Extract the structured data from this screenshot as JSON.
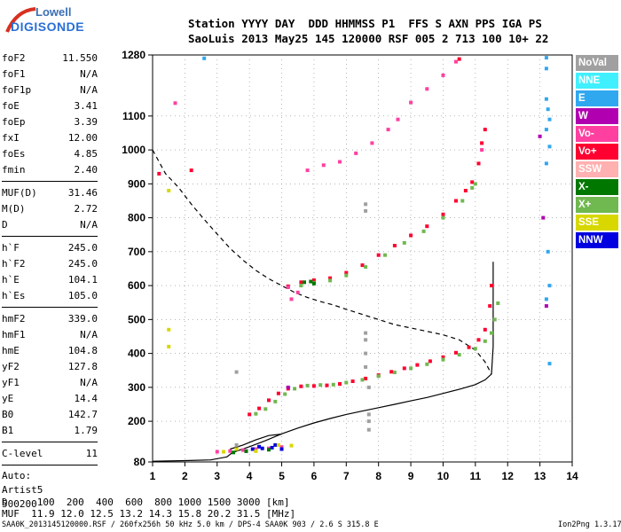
{
  "logo": {
    "line1": "Lowell",
    "line2": "DIGISONDE"
  },
  "header": {
    "row1": "Station YYYY DAY  DDD HHMMSS P1  FFS S AXN PPS IGA PS",
    "row2": "SaoLuis 2013 May25 145 120000 RSF 005 2 713 100 10+ 22"
  },
  "params": [
    [
      {
        "label": "foF2",
        "value": "11.550"
      },
      {
        "label": "foF1",
        "value": "N/A"
      },
      {
        "label": "foF1p",
        "value": "N/A"
      },
      {
        "label": "foE",
        "value": "3.41"
      },
      {
        "label": "foEp",
        "value": "3.39"
      },
      {
        "label": "fxI",
        "value": "12.00"
      },
      {
        "label": "foEs",
        "value": "4.85"
      },
      {
        "label": "fmin",
        "value": "2.40"
      }
    ],
    [
      {
        "label": "MUF(D)",
        "value": "31.46"
      },
      {
        "label": "M(D)",
        "value": "2.72"
      },
      {
        "label": "D",
        "value": "N/A"
      }
    ],
    [
      {
        "label": "h`F",
        "value": "245.0"
      },
      {
        "label": "h`F2",
        "value": "245.0"
      },
      {
        "label": "h`E",
        "value": "104.1"
      },
      {
        "label": "h`Es",
        "value": "105.0"
      }
    ],
    [
      {
        "label": "hmF2",
        "value": "339.0"
      },
      {
        "label": "hmF1",
        "value": "N/A"
      },
      {
        "label": "hmE",
        "value": "104.8"
      },
      {
        "label": "yF2",
        "value": "127.8"
      },
      {
        "label": "yF1",
        "value": "N/A"
      },
      {
        "label": "yE",
        "value": "14.4"
      },
      {
        "label": "B0",
        "value": "142.7"
      },
      {
        "label": "B1",
        "value": "1.79"
      }
    ],
    [
      {
        "label": "C-level",
        "value": "11"
      }
    ]
  ],
  "auto": [
    "Auto:",
    "Artist5",
    "500200"
  ],
  "legend": [
    {
      "label": "NoVal",
      "color": "#a0a0a0"
    },
    {
      "label": "NNE",
      "color": "#40f0ff"
    },
    {
      "label": "E",
      "color": "#30a8f0"
    },
    {
      "label": "W",
      "color": "#b000b0"
    },
    {
      "label": "Vo-",
      "color": "#ff40a0"
    },
    {
      "label": "Vo+",
      "color": "#ff0030"
    },
    {
      "label": "SSW",
      "color": "#ffb0b0"
    },
    {
      "label": "X-",
      "color": "#007800"
    },
    {
      "label": "X+",
      "color": "#70b850"
    },
    {
      "label": "SSE",
      "color": "#d8d800"
    },
    {
      "label": "NNW",
      "color": "#0000e0"
    }
  ],
  "dmuf": {
    "d_row": "D     100  200  400  600  800 1000 1500 3000 [km]",
    "muf_row": "MUF  11.9 12.0 12.5 13.2 14.3 15.8 20.2 31.5 [MHz]"
  },
  "footer": "SAA0K_2013145120000.RSF / 260fx256h 50 kHz 5.0 km / DPS-4 SAA0K 903 / 2.6 S 315.8 E",
  "version": "Ion2Png 1.3.17",
  "chart_data": {
    "type": "scatter",
    "title": "",
    "xlabel": "",
    "ylabel": "",
    "xlim": [
      1,
      14
    ],
    "ylim": [
      80,
      1280
    ],
    "x_ticks": [
      1,
      2,
      3,
      4,
      5,
      6,
      7,
      8,
      9,
      10,
      11,
      12,
      13,
      14
    ],
    "y_ticks": [
      80,
      200,
      300,
      400,
      500,
      600,
      700,
      800,
      900,
      1000,
      1100,
      1280
    ],
    "grid": "dotted",
    "series": [
      {
        "name": "Vo+",
        "color": "#ff0030",
        "points": [
          [
            4.0,
            220
          ],
          [
            4.3,
            238
          ],
          [
            4.6,
            262
          ],
          [
            4.9,
            282
          ],
          [
            5.2,
            296
          ],
          [
            5.6,
            303
          ],
          [
            6.0,
            304
          ],
          [
            6.4,
            306
          ],
          [
            6.8,
            310
          ],
          [
            7.2,
            318
          ],
          [
            7.6,
            326
          ],
          [
            8.0,
            336
          ],
          [
            8.4,
            346
          ],
          [
            8.8,
            356
          ],
          [
            9.2,
            366
          ],
          [
            9.6,
            377
          ],
          [
            10.0,
            389
          ],
          [
            10.4,
            402
          ],
          [
            10.8,
            418
          ],
          [
            11.1,
            440
          ],
          [
            11.3,
            470
          ],
          [
            11.45,
            540
          ],
          [
            11.5,
            600
          ],
          [
            5.2,
            598
          ],
          [
            5.6,
            610
          ],
          [
            6.0,
            616
          ],
          [
            6.5,
            622
          ],
          [
            7.0,
            638
          ],
          [
            7.5,
            660
          ],
          [
            8.0,
            690
          ],
          [
            8.5,
            718
          ],
          [
            9.0,
            748
          ],
          [
            9.5,
            775
          ],
          [
            10.0,
            810
          ],
          [
            10.4,
            850
          ],
          [
            10.7,
            880
          ],
          [
            10.9,
            905
          ],
          [
            11.1,
            960
          ],
          [
            11.2,
            1020
          ],
          [
            11.3,
            1060
          ],
          [
            10.5,
            1268
          ],
          [
            1.2,
            930
          ],
          [
            2.2,
            940
          ]
        ]
      },
      {
        "name": "X+",
        "color": "#70b850",
        "points": [
          [
            4.2,
            222
          ],
          [
            4.5,
            236
          ],
          [
            4.8,
            258
          ],
          [
            5.1,
            280
          ],
          [
            5.4,
            296
          ],
          [
            5.8,
            305
          ],
          [
            6.2,
            307
          ],
          [
            6.6,
            308
          ],
          [
            7.0,
            314
          ],
          [
            7.5,
            322
          ],
          [
            8.0,
            333
          ],
          [
            8.5,
            344
          ],
          [
            9.0,
            356
          ],
          [
            9.5,
            368
          ],
          [
            10.0,
            382
          ],
          [
            10.5,
            396
          ],
          [
            11.0,
            414
          ],
          [
            11.3,
            436
          ],
          [
            11.5,
            460
          ],
          [
            11.6,
            500
          ],
          [
            11.7,
            548
          ],
          [
            5.6,
            600
          ],
          [
            6.0,
            608
          ],
          [
            6.5,
            615
          ],
          [
            7.0,
            630
          ],
          [
            7.6,
            655
          ],
          [
            8.2,
            690
          ],
          [
            8.8,
            726
          ],
          [
            9.4,
            760
          ],
          [
            10.0,
            800
          ],
          [
            10.6,
            850
          ],
          [
            10.9,
            888
          ],
          [
            11.0,
            900
          ]
        ]
      },
      {
        "name": "Vo-",
        "color": "#ff40a0",
        "points": [
          [
            3.0,
            110
          ],
          [
            3.4,
            112
          ],
          [
            3.8,
            115
          ],
          [
            4.2,
            118
          ],
          [
            4.6,
            120
          ],
          [
            5.0,
            124
          ],
          [
            5.3,
            560
          ],
          [
            5.5,
            580
          ],
          [
            5.2,
            595
          ],
          [
            5.8,
            940
          ],
          [
            6.3,
            955
          ],
          [
            6.8,
            965
          ],
          [
            7.3,
            990
          ],
          [
            7.8,
            1020
          ],
          [
            8.3,
            1060
          ],
          [
            8.6,
            1090
          ],
          [
            9.0,
            1140
          ],
          [
            9.5,
            1180
          ],
          [
            10.0,
            1220
          ],
          [
            10.4,
            1260
          ],
          [
            1.7,
            1138
          ],
          [
            11.2,
            1000
          ]
        ]
      },
      {
        "name": "NNW",
        "color": "#0000e0",
        "points": [
          [
            4.1,
            118
          ],
          [
            4.4,
            120
          ],
          [
            4.7,
            122
          ],
          [
            5.0,
            118
          ],
          [
            3.9,
            112
          ],
          [
            4.3,
            125
          ],
          [
            4.8,
            130
          ]
        ]
      },
      {
        "name": "E",
        "color": "#30a8f0",
        "points": [
          [
            13.2,
            1240
          ],
          [
            13.2,
            1150
          ],
          [
            13.25,
            1120
          ],
          [
            13.3,
            1090
          ],
          [
            13.2,
            1060
          ],
          [
            13.3,
            1010
          ],
          [
            13.2,
            960
          ],
          [
            13.25,
            700
          ],
          [
            13.3,
            600
          ],
          [
            13.2,
            560
          ],
          [
            13.3,
            370
          ],
          [
            13.2,
            1272
          ],
          [
            2.6,
            1270
          ]
        ]
      },
      {
        "name": "SSE",
        "color": "#d8d800",
        "points": [
          [
            1.5,
            880
          ],
          [
            1.5,
            470
          ],
          [
            1.5,
            420
          ],
          [
            3.2,
            110
          ],
          [
            3.6,
            118
          ],
          [
            4.2,
            112
          ],
          [
            4.9,
            130
          ],
          [
            5.3,
            128
          ]
        ]
      },
      {
        "name": "X-",
        "color": "#007800",
        "points": [
          [
            5.7,
            610
          ],
          [
            5.9,
            612
          ],
          [
            6.0,
            606
          ],
          [
            3.5,
            108
          ],
          [
            3.9,
            112
          ],
          [
            4.6,
            116
          ]
        ]
      },
      {
        "name": "W",
        "color": "#b000b0",
        "points": [
          [
            13.0,
            1040
          ],
          [
            13.1,
            800
          ],
          [
            13.2,
            540
          ],
          [
            5.2,
            300
          ]
        ]
      },
      {
        "name": "NoVal",
        "color": "#a0a0a0",
        "points": [
          [
            7.6,
            360
          ],
          [
            7.6,
            400
          ],
          [
            7.7,
            300
          ],
          [
            7.7,
            220
          ],
          [
            7.7,
            200
          ],
          [
            7.7,
            175
          ],
          [
            7.6,
            820
          ],
          [
            7.6,
            840
          ],
          [
            7.6,
            460
          ],
          [
            7.6,
            440
          ],
          [
            3.6,
            345
          ],
          [
            3.6,
            130
          ]
        ]
      }
    ],
    "curves": [
      {
        "name": "profile",
        "style": "solid",
        "points": [
          [
            1.0,
            82
          ],
          [
            2.0,
            84
          ],
          [
            2.8,
            86
          ],
          [
            3.3,
            95
          ],
          [
            3.45,
            106
          ],
          [
            3.6,
            112
          ],
          [
            4.0,
            125
          ],
          [
            4.5,
            143
          ],
          [
            5.0,
            163
          ],
          [
            5.5,
            180
          ],
          [
            6.0,
            195
          ],
          [
            6.5,
            208
          ],
          [
            7.0,
            220
          ],
          [
            7.5,
            230
          ],
          [
            8.0,
            240
          ],
          [
            8.5,
            250
          ],
          [
            9.0,
            260
          ],
          [
            9.5,
            270
          ],
          [
            10.0,
            282
          ],
          [
            10.5,
            294
          ],
          [
            11.0,
            308
          ],
          [
            11.3,
            322
          ],
          [
            11.5,
            339
          ],
          [
            11.55,
            420
          ],
          [
            11.55,
            520
          ],
          [
            11.55,
            600
          ],
          [
            11.55,
            670
          ]
        ]
      },
      {
        "name": "model-trace",
        "style": "dashed",
        "points": [
          [
            1.0,
            1000
          ],
          [
            1.4,
            930
          ],
          [
            1.8,
            890
          ],
          [
            2.2,
            840
          ],
          [
            2.6,
            795
          ],
          [
            3.0,
            752
          ],
          [
            3.4,
            710
          ],
          [
            3.8,
            675
          ],
          [
            4.2,
            645
          ],
          [
            4.6,
            620
          ],
          [
            5.0,
            600
          ],
          [
            5.4,
            580
          ],
          [
            5.8,
            565
          ],
          [
            6.2,
            553
          ],
          [
            6.6,
            543
          ],
          [
            7.0,
            530
          ],
          [
            7.5,
            515
          ],
          [
            8.0,
            500
          ],
          [
            8.5,
            485
          ],
          [
            9.0,
            475
          ],
          [
            9.5,
            465
          ],
          [
            10.0,
            455
          ],
          [
            10.5,
            440
          ],
          [
            11.0,
            410
          ],
          [
            11.3,
            375
          ],
          [
            11.5,
            339
          ]
        ]
      },
      {
        "name": "ascending",
        "style": "solid",
        "points": [
          [
            3.4,
            118
          ],
          [
            3.8,
            130
          ],
          [
            4.2,
            145
          ],
          [
            4.6,
            158
          ],
          [
            5.0,
            162
          ]
        ]
      }
    ]
  }
}
